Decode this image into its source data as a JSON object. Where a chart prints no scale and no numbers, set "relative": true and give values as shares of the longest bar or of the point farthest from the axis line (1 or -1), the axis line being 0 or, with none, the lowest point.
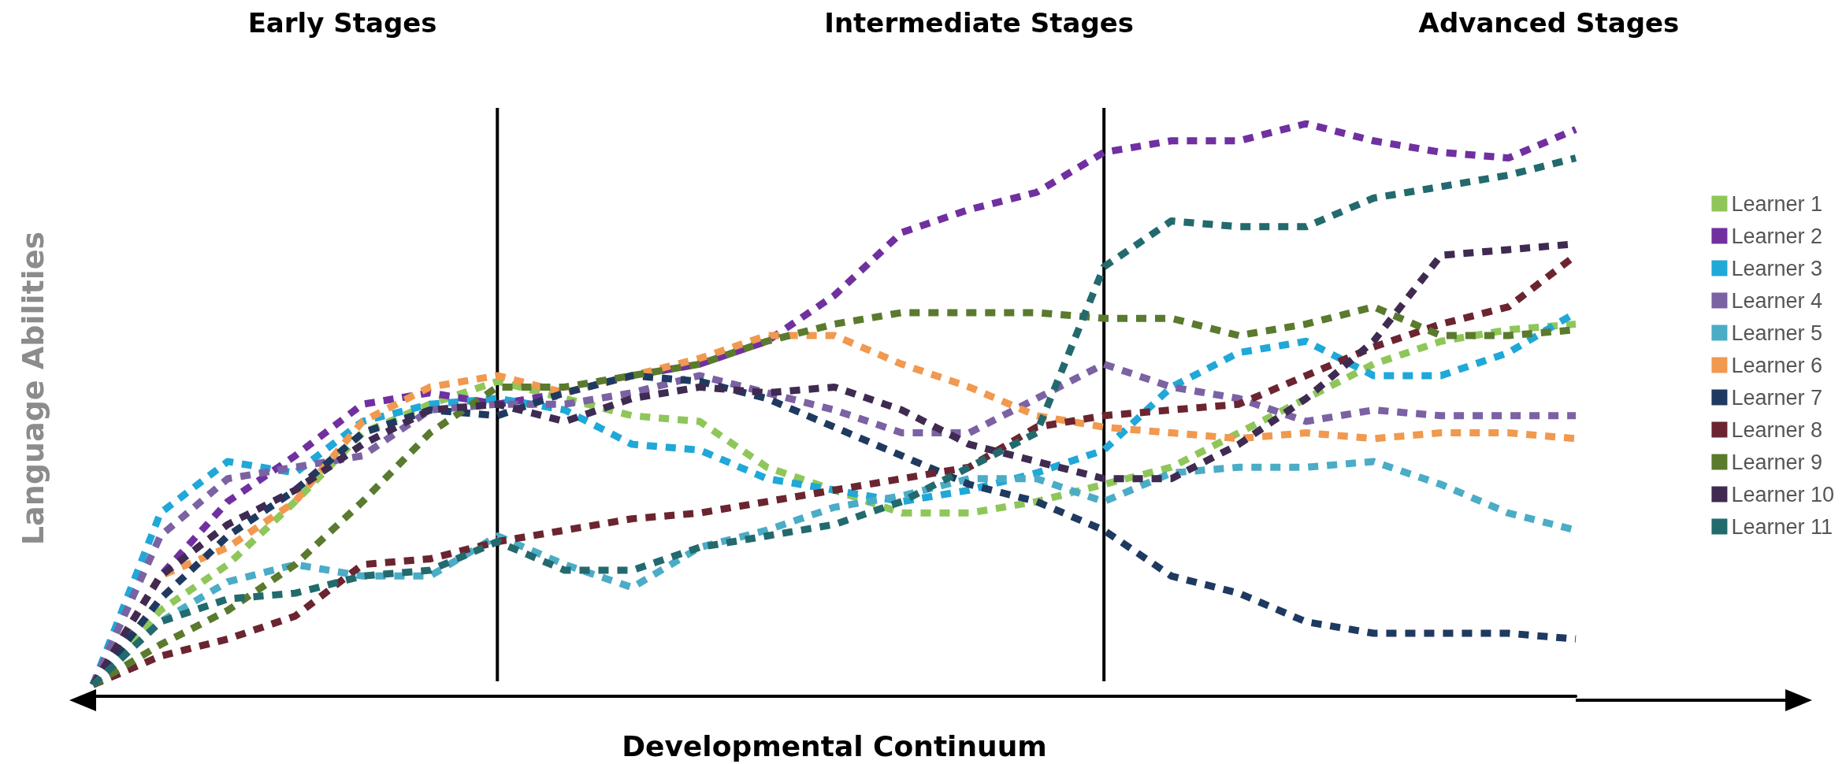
{
  "chart_data": {
    "type": "line",
    "relative": true,
    "xlabel": "Developmental Continuum",
    "ylabel": "Language Abilities",
    "annotations": [
      "Early Stages",
      "Intermediate Stages",
      "Advanced Stages"
    ],
    "categories": [
      null,
      null,
      null,
      null,
      null,
      null,
      null,
      null,
      null,
      null,
      null,
      null,
      null,
      null,
      null,
      null,
      null,
      null,
      null,
      null,
      null,
      null,
      null
    ],
    "series": [
      {
        "name": "Learner 1",
        "color": "#8fc65a",
        "values": [
          0.02,
          0.15,
          0.23,
          0.34,
          0.46,
          0.51,
          0.55,
          0.52,
          0.49,
          0.48,
          0.4,
          0.36,
          0.32,
          0.32,
          0.34,
          0.37,
          0.4,
          0.46,
          0.52,
          0.58,
          0.62,
          0.64,
          0.65
        ]
      },
      {
        "name": "Learner 2",
        "color": "#7030a0",
        "values": [
          0.02,
          0.21,
          0.34,
          0.42,
          0.51,
          0.53,
          0.51,
          0.53,
          0.56,
          0.58,
          0.62,
          0.7,
          0.81,
          0.85,
          0.88,
          0.95,
          0.97,
          0.97,
          1.0,
          0.97,
          0.95,
          0.94,
          0.99
        ]
      },
      {
        "name": "Learner 3",
        "color": "#1fa8d8",
        "values": [
          0.02,
          0.32,
          0.41,
          0.39,
          0.48,
          0.51,
          0.52,
          0.5,
          0.44,
          0.43,
          0.38,
          0.36,
          0.34,
          0.36,
          0.39,
          0.43,
          0.54,
          0.6,
          0.62,
          0.56,
          0.56,
          0.6,
          0.67
        ]
      },
      {
        "name": "Learner 4",
        "color": "#7b62a3",
        "values": [
          0.02,
          0.28,
          0.38,
          0.4,
          0.42,
          0.5,
          0.51,
          0.51,
          0.53,
          0.56,
          0.53,
          0.5,
          0.46,
          0.46,
          0.52,
          0.58,
          0.54,
          0.52,
          0.48,
          0.5,
          0.49,
          0.49,
          0.49
        ]
      },
      {
        "name": "Learner 5",
        "color": "#4bacc6",
        "values": [
          0.02,
          0.13,
          0.2,
          0.23,
          0.21,
          0.21,
          0.28,
          0.23,
          0.19,
          0.26,
          0.29,
          0.33,
          0.35,
          0.38,
          0.38,
          0.34,
          0.39,
          0.4,
          0.4,
          0.41,
          0.37,
          0.32,
          0.29
        ]
      },
      {
        "name": "Learner 6",
        "color": "#f0994f",
        "values": [
          0.02,
          0.21,
          0.26,
          0.34,
          0.48,
          0.54,
          0.56,
          0.53,
          0.56,
          0.59,
          0.63,
          0.63,
          0.58,
          0.54,
          0.49,
          0.47,
          0.46,
          0.45,
          0.46,
          0.45,
          0.46,
          0.46,
          0.45
        ]
      },
      {
        "name": "Learner 7",
        "color": "#1f3a60",
        "values": [
          0.02,
          0.17,
          0.28,
          0.36,
          0.46,
          0.5,
          0.49,
          0.53,
          0.56,
          0.55,
          0.52,
          0.47,
          0.42,
          0.37,
          0.34,
          0.29,
          0.21,
          0.18,
          0.13,
          0.11,
          0.11,
          0.11,
          0.1
        ]
      },
      {
        "name": "Learner 8",
        "color": "#6b2530",
        "values": [
          0.02,
          0.07,
          0.1,
          0.14,
          0.23,
          0.24,
          0.27,
          0.29,
          0.31,
          0.32,
          0.34,
          0.36,
          0.38,
          0.4,
          0.47,
          0.49,
          0.5,
          0.51,
          0.56,
          0.61,
          0.65,
          0.68,
          0.77
        ]
      },
      {
        "name": "Learner 9",
        "color": "#5a7a2e",
        "values": [
          0.02,
          0.09,
          0.15,
          0.23,
          0.34,
          0.46,
          0.54,
          0.54,
          0.56,
          0.58,
          0.62,
          0.65,
          0.67,
          0.67,
          0.67,
          0.66,
          0.66,
          0.63,
          0.65,
          0.68,
          0.63,
          0.63,
          0.64
        ]
      },
      {
        "name": "Learner 10",
        "color": "#3f2b52",
        "values": [
          0.02,
          0.21,
          0.3,
          0.36,
          0.44,
          0.5,
          0.51,
          0.48,
          0.52,
          0.54,
          0.53,
          0.54,
          0.5,
          0.44,
          0.41,
          0.38,
          0.38,
          0.44,
          0.52,
          0.62,
          0.77,
          0.78,
          0.79
        ]
      },
      {
        "name": "Learner 11",
        "color": "#236a6e",
        "values": [
          0.02,
          0.13,
          0.17,
          0.18,
          0.21,
          0.22,
          0.27,
          0.22,
          0.22,
          0.26,
          0.28,
          0.3,
          0.34,
          0.4,
          0.46,
          0.75,
          0.83,
          0.82,
          0.82,
          0.87,
          0.89,
          0.91,
          0.94
        ]
      }
    ],
    "legend": "right",
    "line_style": "dotted",
    "marker": "none",
    "grid": false
  }
}
